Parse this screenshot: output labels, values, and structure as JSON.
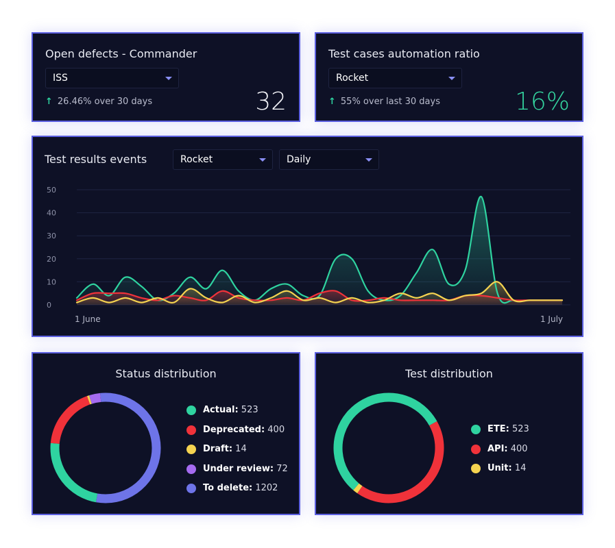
{
  "open_defects": {
    "title": "Open defects - Commander",
    "filter": "ISS",
    "trend": "26.46% over 30 days",
    "value": "32"
  },
  "automation_ratio": {
    "title": "Test cases automation ratio",
    "filter": "Rocket",
    "trend": "55% over last 30 days",
    "value": "16%"
  },
  "test_results": {
    "title": "Test results events",
    "project_filter": "Rocket",
    "period_filter": "Daily",
    "x_start_label": "1 June",
    "x_end_label": "1 July"
  },
  "status_distribution": {
    "title": "Status distribution",
    "items": [
      {
        "label": "Actual:",
        "value": "523",
        "color": "#2fd3a0"
      },
      {
        "label": "Deprecated:",
        "value": "400",
        "color": "#f0323a"
      },
      {
        "label": "Draft:",
        "value": "14",
        "color": "#f5d350"
      },
      {
        "label": "Under review:",
        "value": "72",
        "color": "#a56bf0"
      },
      {
        "label": "To delete:",
        "value": "1202",
        "color": "#6e74e8"
      }
    ]
  },
  "test_distribution": {
    "title": "Test distribution",
    "items": [
      {
        "label": "ETE:",
        "value": "523",
        "color": "#2fd3a0"
      },
      {
        "label": "API:",
        "value": "400",
        "color": "#f0323a"
      },
      {
        "label": "Unit:",
        "value": "14",
        "color": "#f5d350"
      }
    ]
  },
  "chart_data": [
    {
      "type": "area",
      "title": "Test results events",
      "ylim": [
        0,
        50
      ],
      "yticks": [
        "50",
        "40",
        "30",
        "20",
        "10",
        "0"
      ],
      "x": [
        1,
        2,
        3,
        4,
        5,
        6,
        7,
        8,
        9,
        10,
        11,
        12,
        13,
        14,
        15,
        16,
        17,
        18,
        19,
        20,
        21,
        22,
        23,
        24,
        25,
        26,
        27,
        28,
        29,
        30,
        31
      ],
      "xlabels": [
        "1 June",
        "1 July"
      ],
      "grid": true,
      "series": [
        {
          "color": "#2fd3a0",
          "values": [
            3,
            9,
            4,
            12,
            8,
            2,
            5,
            12,
            7,
            15,
            6,
            2,
            7,
            9,
            4,
            4,
            20,
            20,
            6,
            2,
            4,
            14,
            24,
            9,
            15,
            47,
            5,
            2,
            2,
            2,
            2
          ]
        },
        {
          "color": "#f0323a",
          "values": [
            2,
            5,
            5,
            5,
            3,
            2,
            4,
            3,
            2,
            6,
            3,
            2,
            2,
            3,
            2,
            5,
            6,
            2,
            2,
            3,
            2,
            2,
            2,
            2,
            4,
            4,
            3,
            2,
            2,
            2,
            2
          ]
        },
        {
          "color": "#f5d350",
          "values": [
            1,
            3,
            1,
            3,
            1,
            3,
            1,
            7,
            3,
            1,
            4,
            1,
            3,
            6,
            2,
            3,
            1,
            3,
            1,
            2,
            5,
            3,
            5,
            2,
            4,
            5,
            10,
            2,
            2,
            2,
            2
          ]
        }
      ]
    },
    {
      "type": "pie",
      "title": "Status distribution",
      "categories": [
        "Actual",
        "Deprecated",
        "Draft",
        "Under review",
        "To delete"
      ],
      "values": [
        523,
        400,
        14,
        72,
        1202
      ]
    },
    {
      "type": "pie",
      "title": "Test distribution",
      "categories": [
        "ETE",
        "API",
        "Unit"
      ],
      "values": [
        523,
        400,
        14
      ]
    }
  ]
}
